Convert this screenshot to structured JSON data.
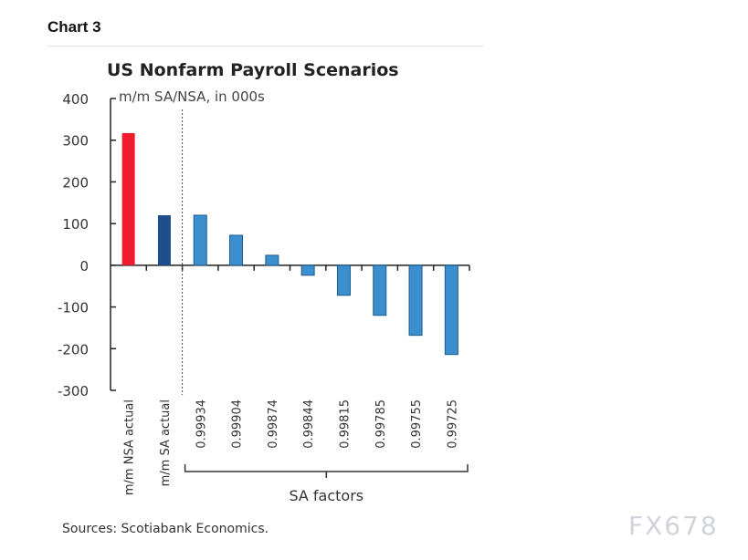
{
  "header": {
    "label": "Chart 3"
  },
  "chart_data": {
    "type": "bar",
    "title": "US Nonfarm Payroll Scenarios",
    "subtitle": "m/m SA/NSA, in 000s",
    "categories": [
      "m/m NSA actual",
      "m/m SA actual",
      "0.99934",
      "0.99904",
      "0.99874",
      "0.99844",
      "0.99815",
      "0.99785",
      "0.99755",
      "0.99725"
    ],
    "values": [
      317,
      120,
      120,
      72,
      24,
      -24,
      -72,
      -120,
      -168,
      -214
    ],
    "colors": [
      "#ee1c2e",
      "#1f4e8c",
      "#3b8fce",
      "#3b8fce",
      "#3b8fce",
      "#3b8fce",
      "#3b8fce",
      "#3b8fce",
      "#3b8fce",
      "#3b8fce"
    ],
    "ylim": [
      -300,
      400
    ],
    "yticks": [
      400,
      300,
      200,
      100,
      0,
      -100,
      -200,
      -300
    ],
    "group_label": "SA factors",
    "grid": false
  },
  "footer": {
    "source": "Sources: Scotiabank Economics.",
    "watermark": "FX678"
  }
}
